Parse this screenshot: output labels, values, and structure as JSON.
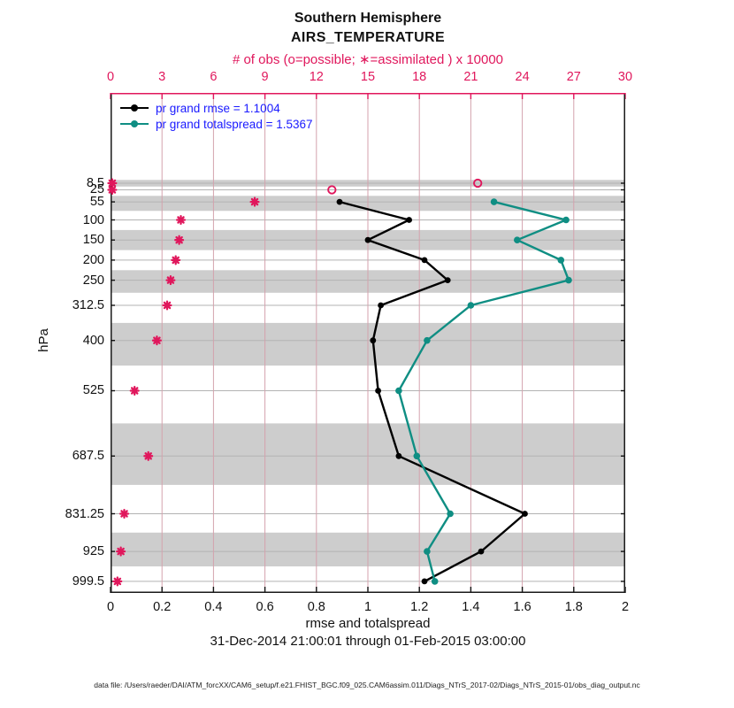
{
  "title": {
    "line1": "Southern Hemisphere",
    "line2": "AIRS_TEMPERATURE"
  },
  "top_axis": {
    "label": "# of obs (o=possible; ∗=assimilated ) x 10000",
    "ticks": [
      "0",
      "3",
      "6",
      "9",
      "12",
      "15",
      "18",
      "21",
      "24",
      "27",
      "30"
    ],
    "color": "#e0175c"
  },
  "x_axis": {
    "label": "rmse and totalspread",
    "ticks": [
      "0",
      "0.2",
      "0.4",
      "0.6",
      "0.8",
      "1",
      "1.2",
      "1.4",
      "1.6",
      "1.8",
      "2"
    ]
  },
  "y_axis": {
    "label": "hPa",
    "tick_labels": [
      "8.5",
      "25",
      "55",
      "100",
      "150",
      "200",
      "250",
      "312.5",
      "400",
      "525",
      "687.5",
      "831.25",
      "925",
      "999.5"
    ]
  },
  "legend": [
    {
      "label": "pr grand rmse = 1.1004",
      "color": "#000000"
    },
    {
      "label": "pr grand totalspread = 1.5367",
      "color": "#0f8e83"
    }
  ],
  "subtitle": "31-Dec-2014 21:00:01 through 01-Feb-2015 03:00:00",
  "footer": "data file: /Users/raeder/DAI/ATM_forcXX/CAM6_setup/f.e21.FHIST_BGC.f09_025.CAM6assim.011/Diags_NTrS_2017-02/Diags_NTrS_2015-01/obs_diag_output.nc",
  "chart_data": {
    "type": "line",
    "title": "Southern Hemisphere AIRS_TEMPERATURE",
    "xlabel": "rmse and totalspread",
    "ylabel": "hPa",
    "top_xlabel": "# of obs (o=possible; ∗=assimilated ) x 10000",
    "xlim_bottom": [
      0,
      2
    ],
    "xlim_top": [
      0,
      30
    ],
    "y_levels_hPa": [
      8.5,
      25,
      55,
      100,
      150,
      200,
      250,
      312.5,
      400,
      525,
      687.5,
      831.25,
      925,
      999.5
    ],
    "y_reversed": true,
    "grid": true,
    "band_color": "#cdcdcd",
    "shaded_level_indices": [
      0,
      2,
      4,
      6,
      8,
      10,
      12
    ],
    "series": [
      {
        "name": "pr grand rmse",
        "stat": 1.1004,
        "axis": "bottom",
        "color": "#000000",
        "marker": "dot",
        "line": true,
        "levels": [
          55,
          100,
          150,
          200,
          250,
          312.5,
          400,
          525,
          687.5,
          831.25,
          925,
          999.5
        ],
        "values": [
          0.89,
          1.16,
          1.0,
          1.22,
          1.31,
          1.05,
          1.02,
          1.04,
          1.12,
          1.61,
          1.44,
          1.22
        ]
      },
      {
        "name": "pr grand totalspread",
        "stat": 1.5367,
        "axis": "bottom",
        "color": "#0f8e83",
        "marker": "dot",
        "line": true,
        "levels": [
          55,
          100,
          150,
          200,
          250,
          312.5,
          400,
          525,
          687.5,
          831.25,
          925,
          999.5
        ],
        "values": [
          1.49,
          1.77,
          1.58,
          1.75,
          1.78,
          1.4,
          1.23,
          1.12,
          1.19,
          1.32,
          1.23,
          1.26
        ]
      },
      {
        "name": "obs assimilated x10000",
        "axis": "top",
        "color": "#e0175c",
        "marker": "asterisk",
        "line": false,
        "levels": [
          8.5,
          25,
          55,
          100,
          150,
          200,
          250,
          312.5,
          400,
          525,
          687.5,
          831.25,
          925,
          999.5
        ],
        "values": [
          0.1,
          0.1,
          8.4,
          4.1,
          4.0,
          3.8,
          3.5,
          3.3,
          2.7,
          1.4,
          2.2,
          0.8,
          0.6,
          0.4
        ]
      },
      {
        "name": "obs possible x10000",
        "axis": "top",
        "color": "#e0175c",
        "marker": "open-circle",
        "line": false,
        "levels": [
          8.5,
          25
        ],
        "values": [
          21.4,
          12.9
        ]
      }
    ]
  }
}
